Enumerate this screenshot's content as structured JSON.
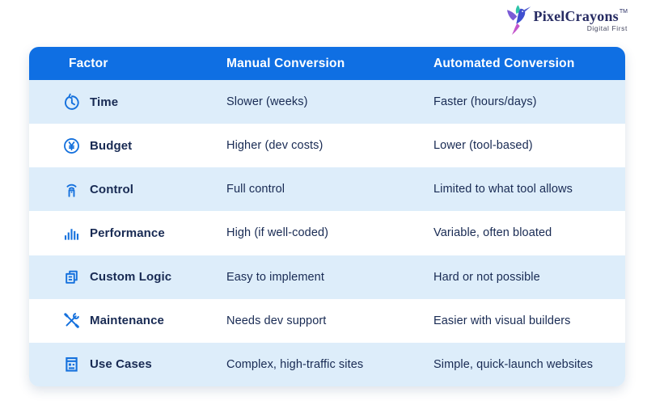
{
  "logo": {
    "brand": "PixelCrayons",
    "trademark": "TM",
    "tagline": "Digital First"
  },
  "table": {
    "headers": [
      "Factor",
      "Manual Conversion",
      "Automated Conversion"
    ],
    "rows": [
      {
        "icon": "history-clock-icon",
        "factor": "Time",
        "manual": "Slower (weeks)",
        "automated": "Faster (hours/days)"
      },
      {
        "icon": "yen-coin-icon",
        "factor": "Budget",
        "manual": "Higher (dev costs)",
        "automated": "Lower (tool-based)"
      },
      {
        "icon": "remote-control-icon",
        "factor": "Control",
        "manual": "Full control",
        "automated": "Limited to what tool allows"
      },
      {
        "icon": "bar-chart-icon",
        "factor": "Performance",
        "manual": "High (if well-coded)",
        "automated": "Variable, often bloated"
      },
      {
        "icon": "documents-icon",
        "factor": "Custom Logic",
        "manual": "Easy to implement",
        "automated": "Hard or not possible"
      },
      {
        "icon": "tools-icon",
        "factor": "Maintenance",
        "manual": "Needs dev support",
        "automated": "Easier with visual builders"
      },
      {
        "icon": "form-layout-icon",
        "factor": "Use Cases",
        "manual": "Complex, high-traffic sites",
        "automated": "Simple, quick-launch websites"
      }
    ]
  },
  "colors": {
    "header_bg": "#0f6fe3",
    "row_alt_bg": "#ddedfa",
    "row_bg": "#ffffff",
    "text": "#182a53",
    "icon_blue": "#1571dd",
    "brand_text": "#272c63"
  }
}
